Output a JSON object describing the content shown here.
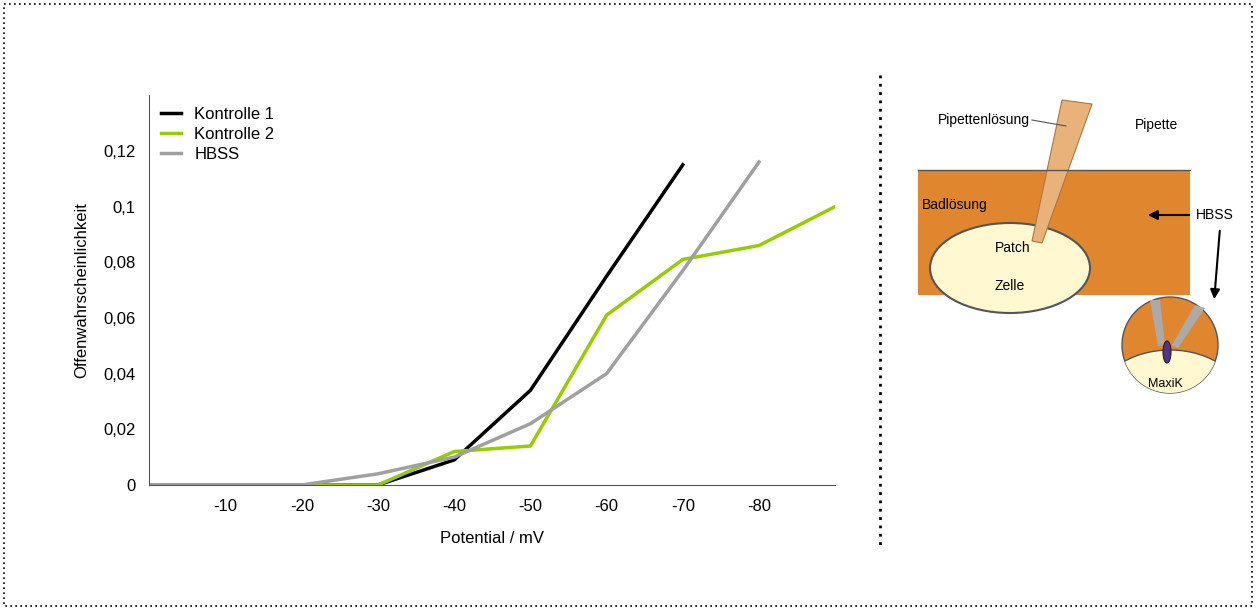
{
  "chart_data": {
    "type": "line",
    "x_label": "Potential / mV",
    "y_label": "Offenwahrscheinlichkeit",
    "x": [
      0,
      -10,
      -20,
      -30,
      -40,
      -50,
      -60,
      -70,
      -80,
      -90
    ],
    "series": [
      {
        "name": "Kontrolle 1",
        "color": "#000000",
        "values": [
          0,
          0,
          0,
          0,
          0.009,
          0.034,
          0.075,
          0.115,
          null,
          null
        ]
      },
      {
        "name": "Kontrolle 2",
        "color": "#99cc00",
        "values": [
          0,
          0,
          0,
          0,
          0.012,
          0.014,
          0.061,
          0.081,
          0.086,
          0.1
        ]
      },
      {
        "name": "HBSS",
        "color": "#a0a0a0",
        "values": [
          0,
          0,
          0,
          0.004,
          0.01,
          0.022,
          0.04,
          0.077,
          0.116,
          null
        ]
      }
    ],
    "xlim": [
      0,
      -90
    ],
    "ylim": [
      0,
      0.14
    ],
    "xticks": [
      -10,
      -20,
      -30,
      -40,
      -50,
      -60,
      -70,
      -80
    ],
    "yticks": [
      0,
      {
        "value": 0.02,
        "label": "0,02"
      },
      {
        "value": 0.04,
        "label": "0,04"
      },
      {
        "value": 0.06,
        "label": "0,06"
      },
      {
        "value": 0.08,
        "label": "0,08"
      },
      {
        "value": 0.1,
        "label": "0,1"
      },
      {
        "value": 0.12,
        "label": "0,12"
      }
    ],
    "legend": "upper left"
  },
  "diagram": {
    "pipette_solution": "Pipettenlösung",
    "pipette": "Pipette",
    "bath_solution": "Badlösung",
    "hbss": "HBSS",
    "patch": "Patch",
    "cell": "Zelle",
    "channel": "MaxiK"
  }
}
